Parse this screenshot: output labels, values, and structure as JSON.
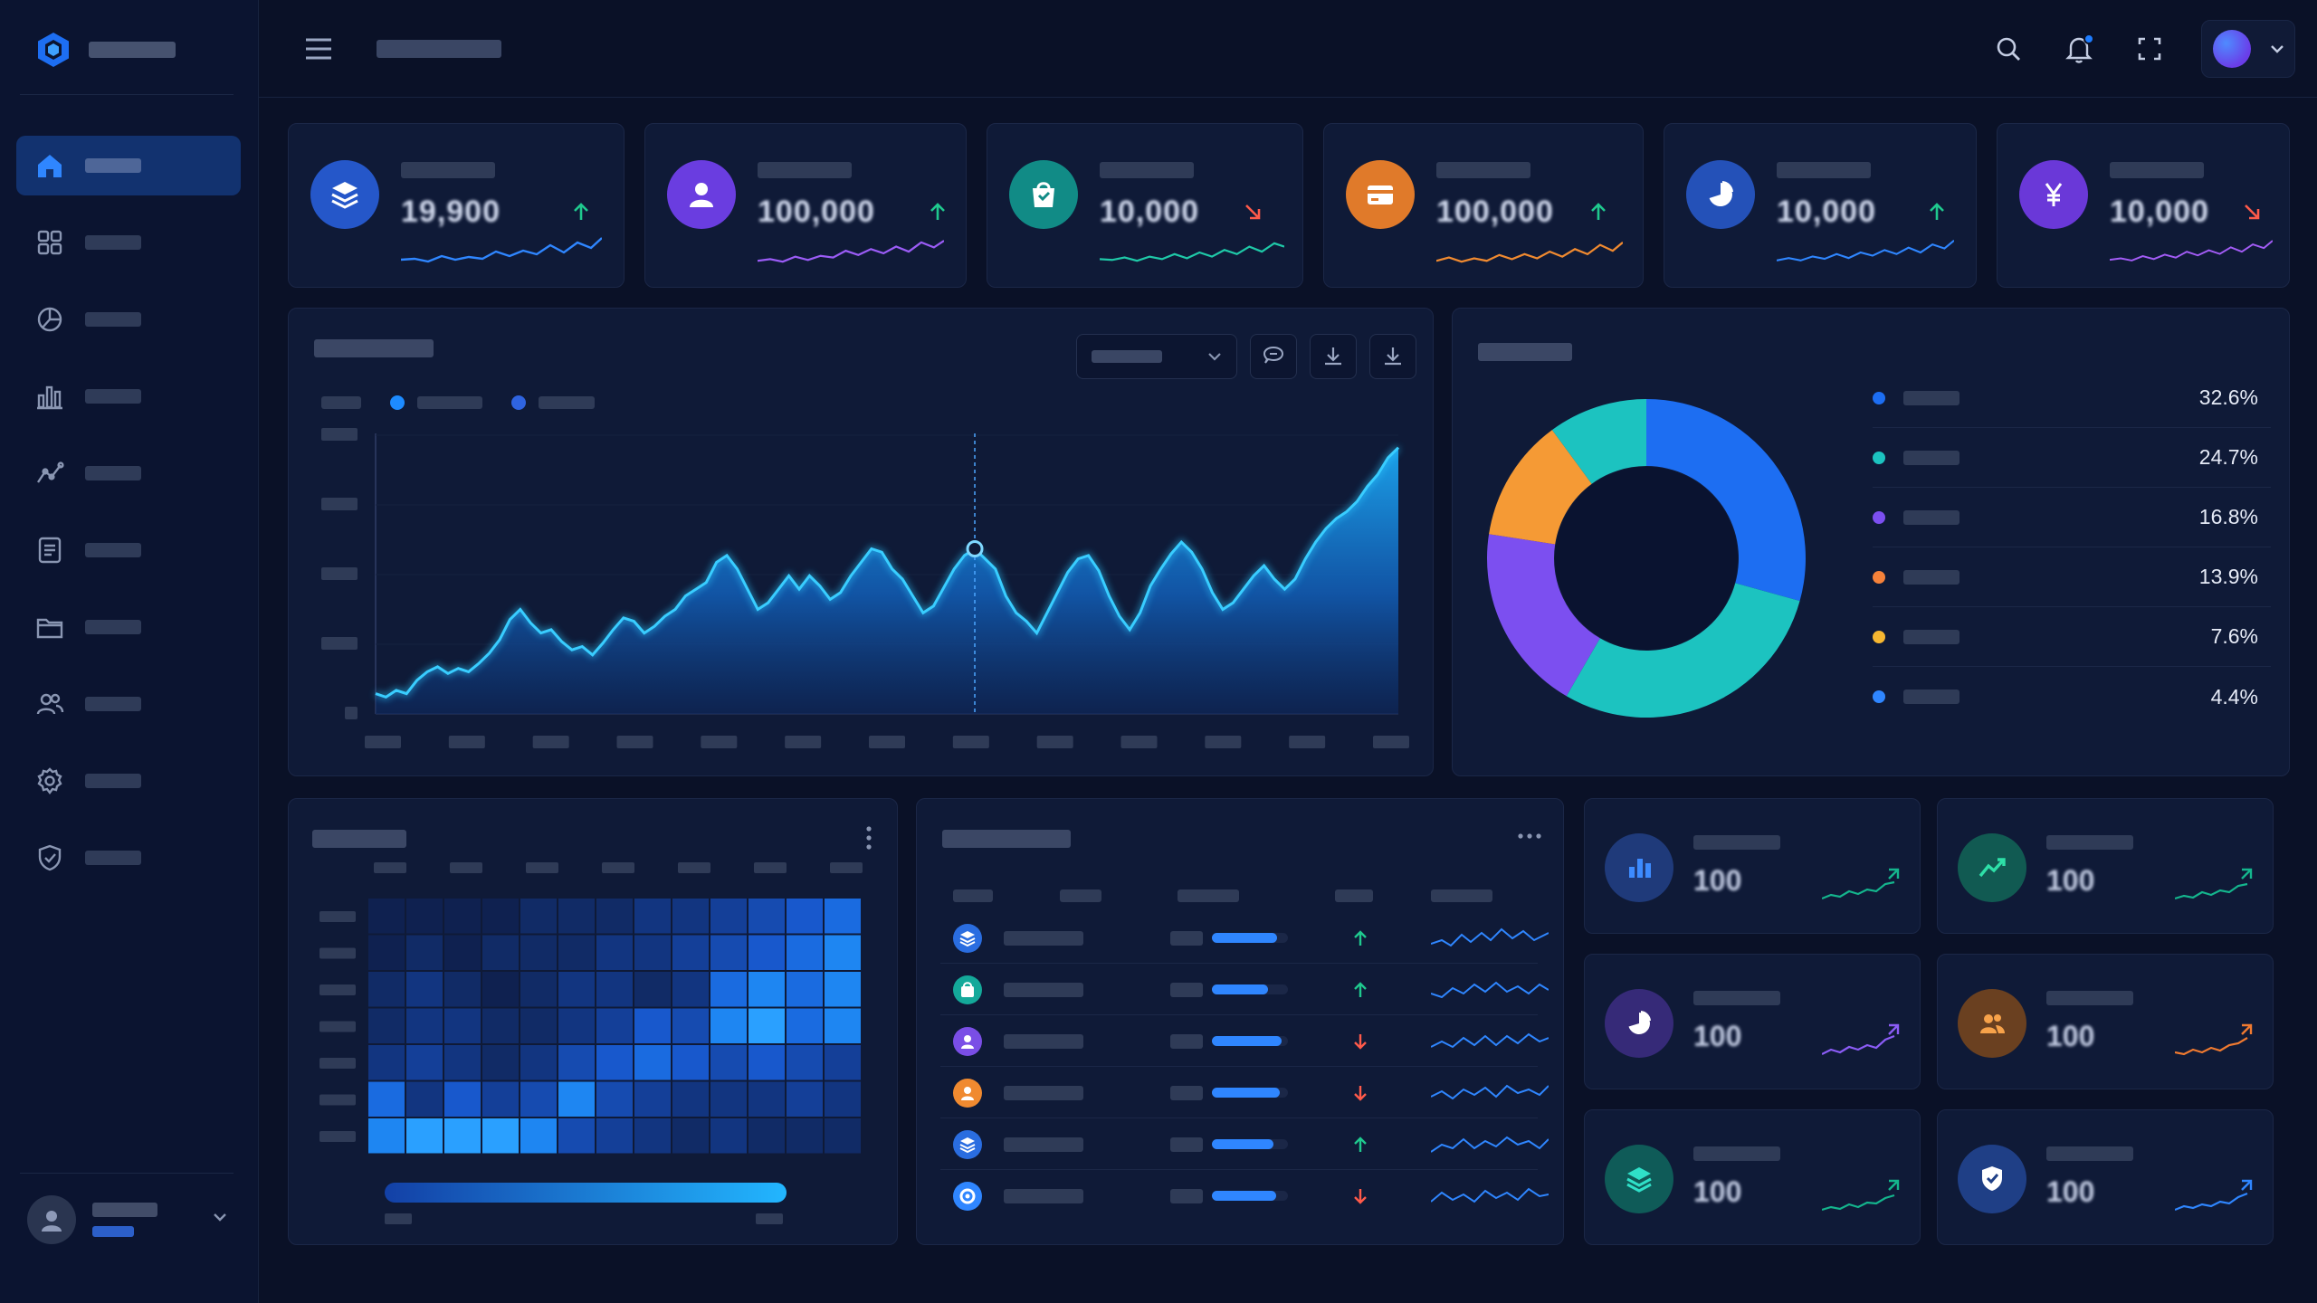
{
  "stats": [
    {
      "value": "19,900",
      "trend": "up"
    },
    {
      "value": "100,000",
      "trend": "up"
    },
    {
      "value": "10,000",
      "trend": "down"
    },
    {
      "value": "100,000",
      "trend": "up"
    },
    {
      "value": "10,000",
      "trend": "up"
    },
    {
      "value": "10,000",
      "trend": "down"
    }
  ],
  "distribution": {
    "segments": [
      {
        "pct": "32.6%",
        "value": 32.6,
        "color": "#1d6ef2"
      },
      {
        "pct": "24.7%",
        "value": 24.7,
        "color": "#1cc3c0"
      },
      {
        "pct": "16.8%",
        "value": 16.8,
        "color": "#7c4ff0"
      },
      {
        "pct": "13.9%",
        "value": 13.9,
        "color": "#f59a35"
      },
      {
        "pct": "7.6%",
        "value": 7.6,
        "color": "#f7b731"
      },
      {
        "pct": "4.4%",
        "value": 4.4,
        "color": "#2f86ff"
      }
    ]
  },
  "table": {
    "rows": [
      {
        "fill": 0.86,
        "trend": "up",
        "icon_color": "#2a6de0"
      },
      {
        "fill": 0.74,
        "trend": "up",
        "icon_color": "#14a99a"
      },
      {
        "fill": 0.92,
        "trend": "down",
        "icon_color": "#7a4ee6"
      },
      {
        "fill": 0.89,
        "trend": "down",
        "icon_color": "#f08a30"
      },
      {
        "fill": 0.81,
        "trend": "up",
        "icon_color": "#2a6de0"
      },
      {
        "fill": 0.84,
        "trend": "down",
        "icon_color": "#2f86ff"
      }
    ]
  },
  "mini_cards": [
    {
      "value": "100",
      "trend_color": "#14b58d"
    },
    {
      "value": "100",
      "trend_color": "#14b58d"
    },
    {
      "value": "100",
      "trend_color": "#8b5cf6"
    },
    {
      "value": "100",
      "trend_color": "#f07a30"
    },
    {
      "value": "100",
      "trend_color": "#14b58d"
    },
    {
      "value": "100",
      "trend_color": "#2f86ff"
    }
  ],
  "colors": {
    "accent": "#1d7cff",
    "up": "#1fc98e",
    "down": "#ff5a4a",
    "area_line": "#28c4ff"
  },
  "icons": {
    "sidebar": [
      "home-icon",
      "grid-icon",
      "pie-chart-icon",
      "bar-chart-icon",
      "trend-icon",
      "document-icon",
      "folder-icon",
      "users-icon",
      "gear-icon",
      "shield-icon"
    ],
    "topbar": [
      "menu-icon",
      "search-icon",
      "bell-icon",
      "fullscreen-icon",
      "chevron-down-icon"
    ],
    "stats": [
      "layers-icon",
      "user-icon",
      "shopping-bag-icon",
      "card-icon",
      "pie-chart-icon",
      "yen-icon"
    ],
    "chart_tools": [
      "comment-icon",
      "download-icon",
      "download-icon"
    ],
    "mini_cards": [
      "bar-chart-icon",
      "trend-icon",
      "pie-chart-icon",
      "users-icon",
      "layers-icon",
      "shield-icon"
    ]
  }
}
